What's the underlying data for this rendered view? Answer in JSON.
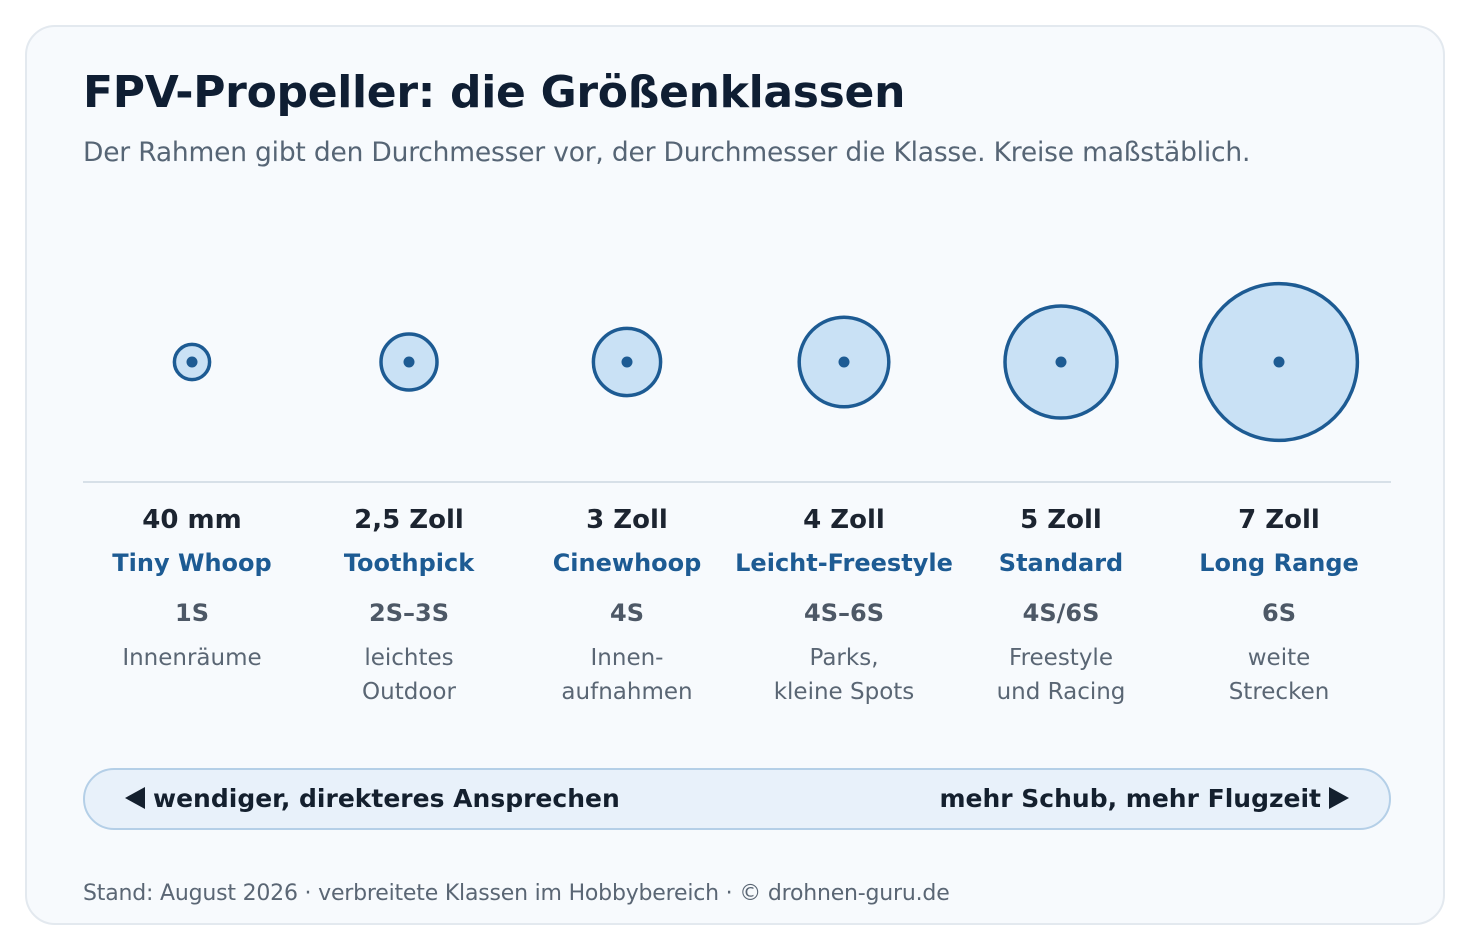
{
  "header": {
    "title": "FPV-Propeller: die Größenklassen",
    "subtitle": "Der Rahmen gibt den Durchmesser vor, der Durchmesser die Klasse. Kreise maßstäblich."
  },
  "classes": [
    {
      "size": "40 mm",
      "name": "Tiny Whoop",
      "cells": "1S",
      "use_line1": "Innenräume",
      "use_line2": "",
      "diameter_inch": 1.575
    },
    {
      "size": "2,5 Zoll",
      "name": "Toothpick",
      "cells": "2S–3S",
      "use_line1": "leichtes",
      "use_line2": "Outdoor",
      "diameter_inch": 2.5
    },
    {
      "size": "3 Zoll",
      "name": "Cinewhoop",
      "cells": "4S",
      "use_line1": "Innen-",
      "use_line2": "aufnahmen",
      "diameter_inch": 3
    },
    {
      "size": "4 Zoll",
      "name": "Leicht-Freestyle",
      "cells": "4S–6S",
      "use_line1": "Parks,",
      "use_line2": "kleine Spots",
      "diameter_inch": 4
    },
    {
      "size": "5 Zoll",
      "name": "Standard",
      "cells": "4S/6S",
      "use_line1": "Freestyle",
      "use_line2": "und Racing",
      "diameter_inch": 5
    },
    {
      "size": "7 Zoll",
      "name": "Long Range",
      "cells": "6S",
      "use_line1": "weite",
      "use_line2": "Strecken",
      "diameter_inch": 7
    }
  ],
  "range": {
    "left_label": "wendiger, direkteres Ansprechen",
    "right_label": "mehr Schub, mehr Flugzeit"
  },
  "footer": {
    "text": "Stand: August 2026 · verbreitete Klassen im Hobbybereich · © drohnen-guru.de"
  },
  "colors": {
    "circle_fill": "#c9e1f5",
    "circle_stroke": "#1d5b93",
    "hub": "#1d5b93"
  }
}
